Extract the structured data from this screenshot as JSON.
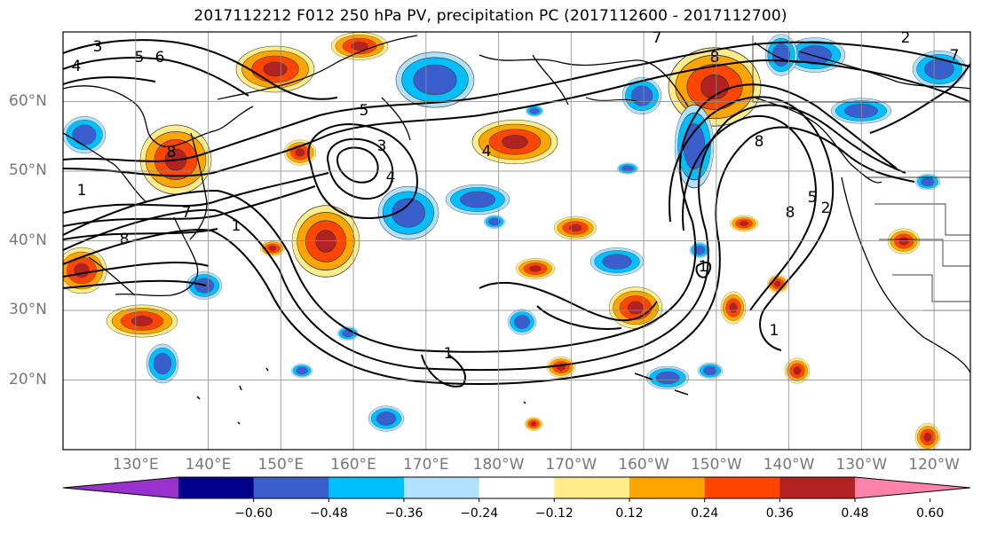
{
  "title": "2017112212 F012 250 hPa PV, precipitation PC (2017112600 - 2017112700)",
  "map": {
    "projection": "cylindrical",
    "lon_min": 120,
    "lon_max": 245,
    "lat_min": 10,
    "lat_max": 70,
    "lat_ticks": [
      {
        "value": 20,
        "label": "20°N"
      },
      {
        "value": 30,
        "label": "30°N"
      },
      {
        "value": 40,
        "label": "40°N"
      },
      {
        "value": 50,
        "label": "50°N"
      },
      {
        "value": 60,
        "label": "60°N"
      }
    ],
    "lon_ticks": [
      {
        "value": 130,
        "label": "130°E"
      },
      {
        "value": 140,
        "label": "140°E"
      },
      {
        "value": 150,
        "label": "150°E"
      },
      {
        "value": 160,
        "label": "160°E"
      },
      {
        "value": 170,
        "label": "170°E"
      },
      {
        "value": 180,
        "label": "180°W"
      },
      {
        "value": 190,
        "label": "170°W"
      },
      {
        "value": 200,
        "label": "160°W"
      },
      {
        "value": 210,
        "label": "150°W"
      },
      {
        "value": 220,
        "label": "140°W"
      },
      {
        "value": 230,
        "label": "130°W"
      },
      {
        "value": 240,
        "label": "120°W"
      }
    ],
    "contour_field": "250 hPa PV",
    "shaded_field": "precipitation PC",
    "contour_labels": [
      "1",
      "2",
      "3",
      "4",
      "5",
      "6",
      "7",
      "8"
    ]
  },
  "colorbar": {
    "colors": [
      "#9932cc",
      "#00008b",
      "#3a5fcd",
      "#00bfff",
      "#b0e2ff",
      "#ffffff",
      "#ffec8b",
      "#ffa500",
      "#ff4500",
      "#b22222",
      "#ff82ab"
    ],
    "labels": [
      "−0.60",
      "−0.48",
      "−0.36",
      "−0.24",
      "−0.12",
      "0.12",
      "0.24",
      "0.36",
      "0.48",
      "0.60"
    ]
  }
}
